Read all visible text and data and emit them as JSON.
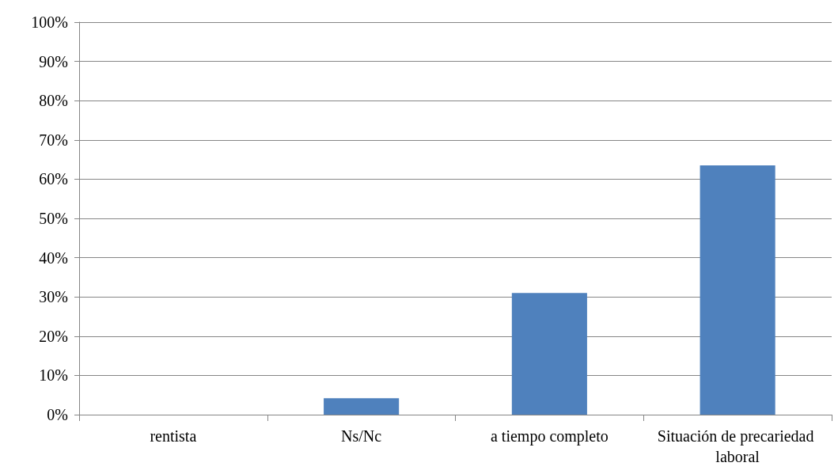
{
  "chart_data": {
    "type": "bar",
    "categories": [
      "rentista",
      "Ns/Nc",
      "a tiempo completo",
      "Situación de precariedad laboral"
    ],
    "values": [
      0,
      4.2,
      31,
      63.5
    ],
    "color": "#4f81bd",
    "ylim": [
      0,
      100
    ],
    "yticks": [
      {
        "value": 0,
        "label": "0%"
      },
      {
        "value": 10,
        "label": "10%"
      },
      {
        "value": 20,
        "label": "20%"
      },
      {
        "value": 30,
        "label": "30%"
      },
      {
        "value": 40,
        "label": "40%"
      },
      {
        "value": 50,
        "label": "50%"
      },
      {
        "value": 60,
        "label": "60%"
      },
      {
        "value": 70,
        "label": "70%"
      },
      {
        "value": 80,
        "label": "80%"
      },
      {
        "value": 90,
        "label": "90%"
      },
      {
        "value": 100,
        "label": "100%"
      }
    ],
    "grid": "y"
  }
}
